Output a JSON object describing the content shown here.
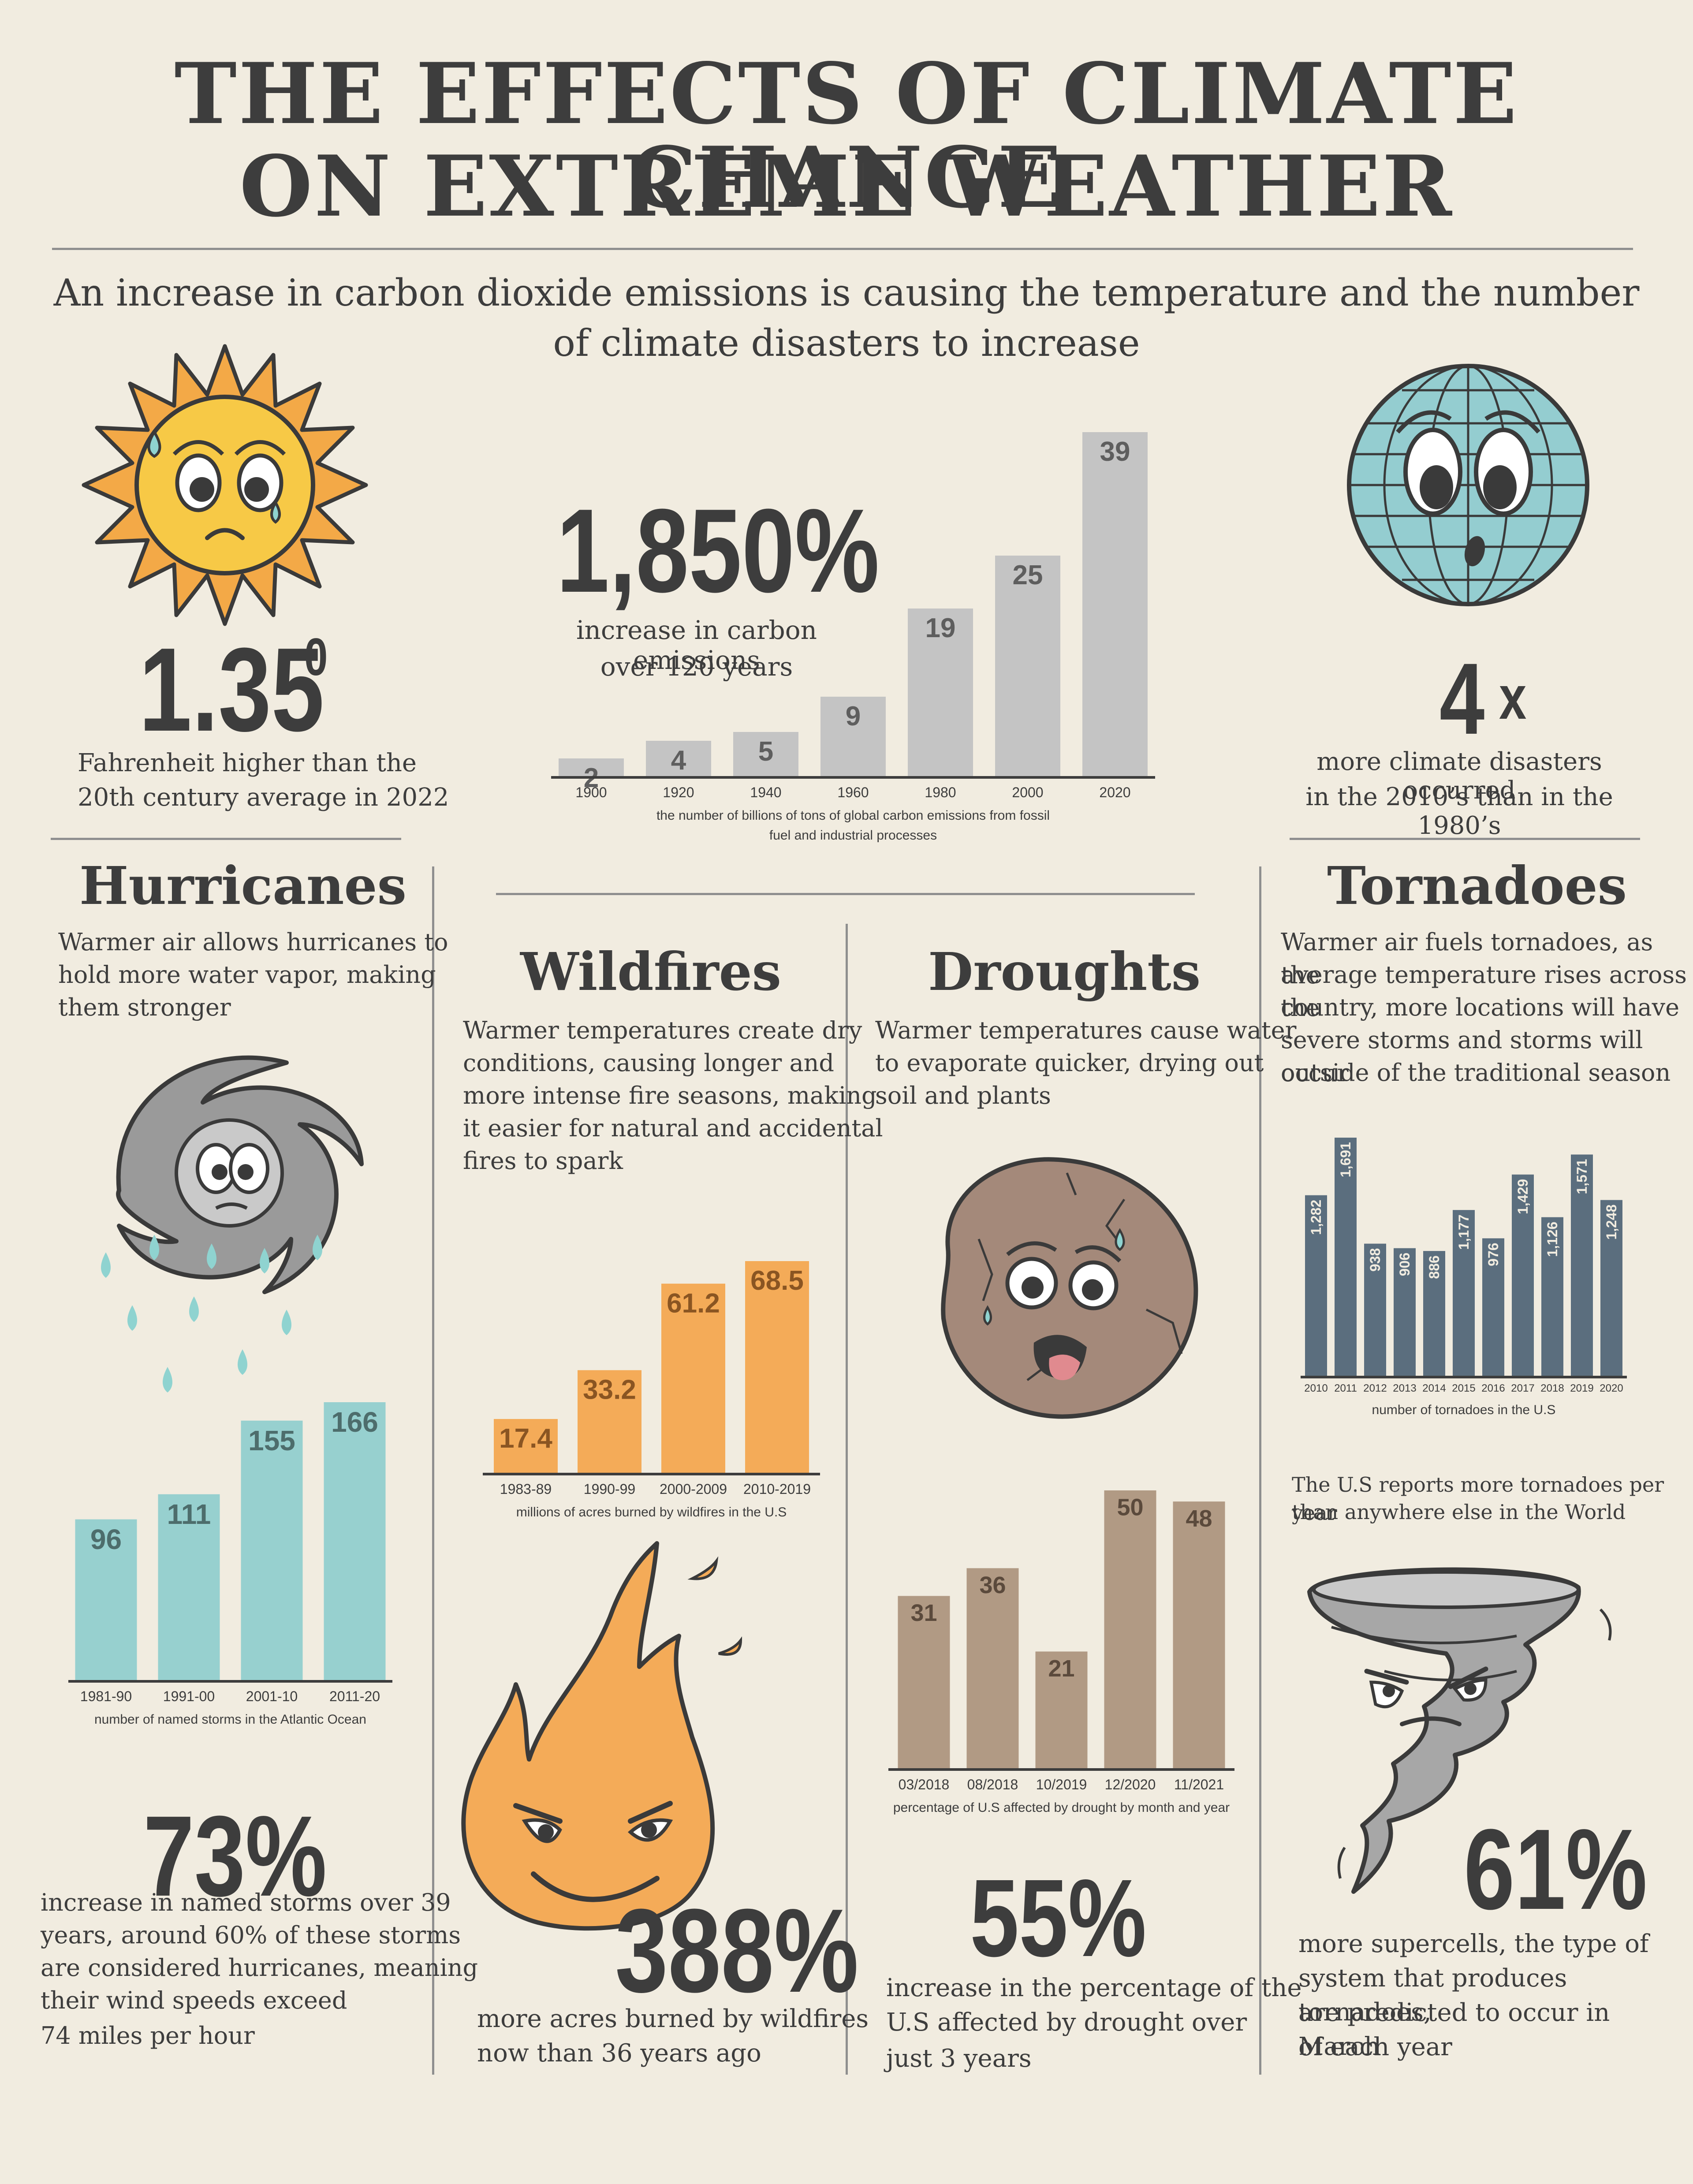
{
  "title": {
    "line1": "THE EFFECTS OF CLIMATE CHANGE",
    "line2": "ON EXTREME WEATHER"
  },
  "subtitle": {
    "line1": "An increase in carbon dioxide  emissions is causing the temperature and the number",
    "line2": "of climate disasters to increase"
  },
  "temperature": {
    "value": "1.35",
    "superscript": "0",
    "desc_line1": "Fahrenheit higher than the",
    "desc_line2": "20th century average in 2022"
  },
  "carbon": {
    "stat": "1,850%",
    "desc_line1": "increase in carbon emissions",
    "desc_line2": "over 120 years"
  },
  "disasters": {
    "stat": "4",
    "suffix": "x",
    "desc_line1": "more climate disasters occurred",
    "desc_line2": "in the 2010’s than in the 1980’s"
  },
  "hurricanes": {
    "heading": "Hurricanes",
    "desc_line1": "Warmer air allows hurricanes to",
    "desc_line2": "hold more water vapor, making",
    "desc_line3": "them stronger",
    "stat": "73%",
    "stat_line1": "increase in named storms over 39",
    "stat_line2": "years, around 60% of these storms",
    "stat_line3": "are considered hurricanes, meaning",
    "stat_line4": "their wind speeds exceed",
    "stat_line5": "74 miles per hour"
  },
  "wildfires": {
    "heading": "Wildfires",
    "desc_line1": "Warmer temperatures create dry",
    "desc_line2": "conditions, causing longer and",
    "desc_line3": "more intense fire seasons, making",
    "desc_line4": "it easier for natural and accidental",
    "desc_line5": "fires to spark",
    "stat": "388%",
    "stat_line1": "more acres burned by wildfires",
    "stat_line2": "now than 36 years ago"
  },
  "droughts": {
    "heading": "Droughts",
    "desc_line1": "Warmer temperatures cause water",
    "desc_line2": "to evaporate quicker, drying out",
    "desc_line3": "soil and plants",
    "stat": "55%",
    "stat_line1": "increase in the percentage of the",
    "stat_line2": "U.S affected by drought over",
    "stat_line3": "just 3 years"
  },
  "tornadoes": {
    "heading": "Tornadoes",
    "desc_line1": "Warmer air fuels tornadoes, as the",
    "desc_line2": "average temperature rises across the",
    "desc_line3": "country, more locations will  have",
    "desc_line4": "severe storms and storms will occur",
    "desc_line5": "outside of the traditional season",
    "note_line1": "The U.S reports more tornadoes per year",
    "note_line2": "than anywhere else in the World",
    "stat": "61%",
    "stat_line1": "more supercells, the type of",
    "stat_line2": "system that produces tornadoes,",
    "stat_line3": "are predicted to occur in March",
    "stat_line4": "of each year"
  },
  "chart_data": [
    {
      "id": "carbon",
      "type": "bar",
      "categories": [
        "1900",
        "1920",
        "1940",
        "1960",
        "1980",
        "2000",
        "2020"
      ],
      "values": [
        2,
        4,
        5,
        9,
        19,
        25,
        39
      ],
      "xlabel_line1": "the number of billions of tons of global carbon emissions from fossil",
      "xlabel_line2": "fuel and industrial processes",
      "color": "#c4c4c4",
      "label_color": "#5e5e5e"
    },
    {
      "id": "hurricanes",
      "type": "bar",
      "categories": [
        "1981-90",
        "1991-00",
        "2001-10",
        "2011-20"
      ],
      "values": [
        96,
        111,
        155,
        166
      ],
      "xlabel_line1": "number of named storms in the Atlantic Ocean",
      "color": "#97d0cf",
      "label_color": "#4d6d6c"
    },
    {
      "id": "wildfires",
      "type": "bar",
      "categories": [
        "1983-89",
        "1990-99",
        "2000-2009",
        "2010-2019"
      ],
      "values": [
        17.4,
        33.2,
        61.2,
        68.5
      ],
      "xlabel_line1": "millions of acres burned by wildfires in the U.S",
      "color": "#f4ab58",
      "label_color": "#8a5522"
    },
    {
      "id": "droughts",
      "type": "bar",
      "categories": [
        "03/2018",
        "08/2018",
        "10/2019",
        "12/2020",
        "11/2021"
      ],
      "values": [
        31,
        36,
        21,
        50,
        48
      ],
      "xlabel_line1": "percentage of U.S affected by drought by month and year",
      "color": "#b19a84",
      "label_color": "#5b4a3c"
    },
    {
      "id": "tornadoes",
      "type": "bar",
      "categories": [
        "2010",
        "2011",
        "2012",
        "2013",
        "2014",
        "2015",
        "2016",
        "2017",
        "2018",
        "2019",
        "2020"
      ],
      "values": [
        1282,
        1691,
        938,
        906,
        886,
        1177,
        976,
        1429,
        1126,
        1571,
        1248
      ],
      "value_labels": [
        "1,282",
        "1,691",
        "938",
        "906",
        "886",
        "1,177",
        "976",
        "1,429",
        "1,126",
        "1,571",
        "1,248"
      ],
      "xlabel_line1": "number of tornadoes in the U.S",
      "color": "#5b6e7e",
      "label_color": "#f1ece0"
    }
  ],
  "icons": [
    "sad-sun-icon",
    "sad-globe-icon",
    "hurricane-icon",
    "fire-icon",
    "dry-rock-icon",
    "tornado-icon"
  ],
  "colors": {
    "background": "#f1ece0",
    "text": "#3d3d3d",
    "rule": "#8f8f8f"
  }
}
